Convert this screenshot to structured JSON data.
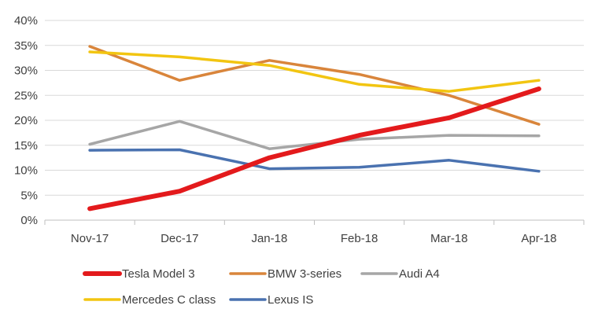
{
  "chart_data": {
    "type": "line",
    "title": "",
    "xlabel": "",
    "ylabel": "",
    "categories": [
      "Nov-17",
      "Dec-17",
      "Jan-18",
      "Feb-18",
      "Mar-18",
      "Apr-18"
    ],
    "ylim": [
      0,
      40
    ],
    "y_ticks": [
      "0%",
      "5%",
      "10%",
      "15%",
      "20%",
      "25%",
      "30%",
      "35%",
      "40%"
    ],
    "grid": true,
    "legend_position": "bottom",
    "series": [
      {
        "name": "Tesla Model 3",
        "color": "#e31a1c",
        "values": [
          2.3,
          5.8,
          12.5,
          17.0,
          20.5,
          26.3
        ]
      },
      {
        "name": "BMW 3-series",
        "color": "#d9853b",
        "values": [
          34.8,
          28.0,
          32.0,
          29.2,
          25.0,
          19.2
        ]
      },
      {
        "name": "Audi A4",
        "color": "#a6a6a6",
        "values": [
          15.2,
          19.8,
          14.3,
          16.2,
          17.0,
          16.9
        ]
      },
      {
        "name": "Mercedes C class",
        "color": "#f2c511",
        "values": [
          33.7,
          32.7,
          31.0,
          27.2,
          25.8,
          28.0
        ]
      },
      {
        "name": "Lexus IS",
        "color": "#4a72b0",
        "values": [
          14.0,
          14.1,
          10.3,
          10.6,
          12.0,
          9.8
        ]
      }
    ]
  }
}
